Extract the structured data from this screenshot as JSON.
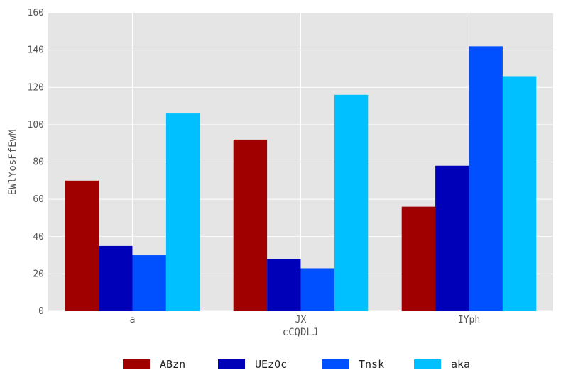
{
  "chart_data": {
    "type": "bar",
    "title": "",
    "xlabel": "cCQDLJ",
    "ylabel": "EWlYosFfEwM",
    "categories": [
      "a",
      "JX",
      "IYph"
    ],
    "series": [
      {
        "name": "ABzn",
        "color": "#a00000",
        "values": [
          70,
          92,
          56
        ]
      },
      {
        "name": "UEzOc",
        "color": "#0000b9",
        "values": [
          35,
          28,
          78
        ]
      },
      {
        "name": "Tnsk",
        "color": "#0050ff",
        "values": [
          30,
          23,
          142
        ]
      },
      {
        "name": "aka",
        "color": "#00c0ff",
        "values": [
          106,
          116,
          126
        ]
      }
    ],
    "ylim": [
      0,
      160
    ],
    "yticks": [
      "0",
      "20",
      "40",
      "60",
      "80",
      "100",
      "120",
      "140",
      "160"
    ],
    "grid": true,
    "legend_position": "bottom-center",
    "background": "#e5e5e5",
    "grid_color": "#ffffff"
  }
}
